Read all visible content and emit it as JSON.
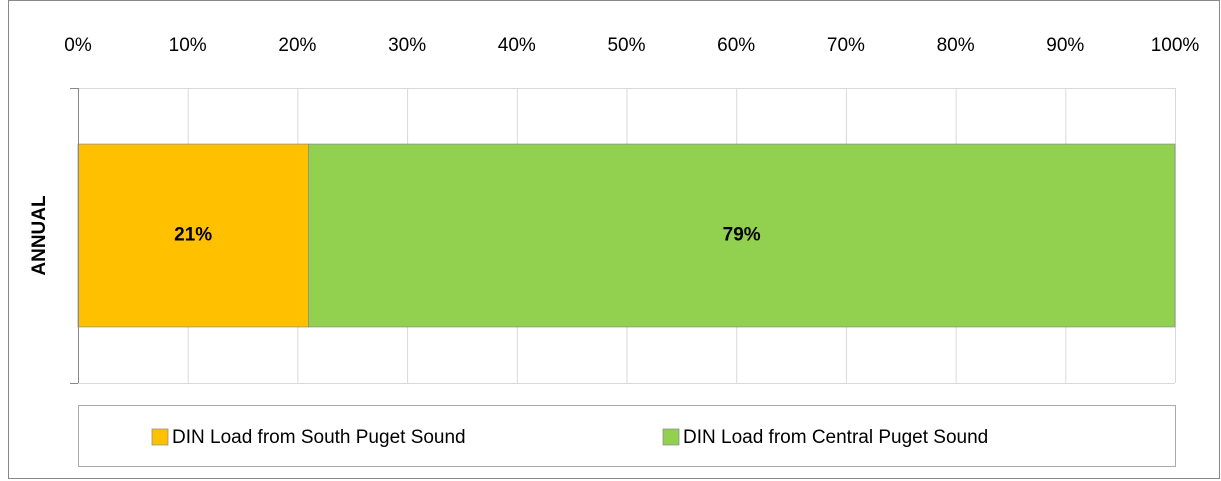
{
  "chart_data": {
    "type": "stacked_bar_horizontal",
    "categories": [
      "ANNUAL"
    ],
    "series": [
      {
        "name": "DIN Load from South Puget Sound",
        "color": "#FFC000",
        "values": [
          21
        ],
        "value_labels": [
          "21%"
        ]
      },
      {
        "name": "DIN Load from Central Puget Sound",
        "color": "#92D050",
        "values": [
          79
        ],
        "value_labels": [
          "79%"
        ]
      }
    ],
    "xlim": [
      0,
      100
    ],
    "xticks": [
      {
        "value": 0,
        "label": "0%"
      },
      {
        "value": 10,
        "label": "10%"
      },
      {
        "value": 20,
        "label": "20%"
      },
      {
        "value": 30,
        "label": "30%"
      },
      {
        "value": 40,
        "label": "40%"
      },
      {
        "value": 50,
        "label": "50%"
      },
      {
        "value": 60,
        "label": "60%"
      },
      {
        "value": 70,
        "label": "70%"
      },
      {
        "value": 80,
        "label": "80%"
      },
      {
        "value": 90,
        "label": "90%"
      },
      {
        "value": 100,
        "label": "100%"
      }
    ],
    "grid": true,
    "legend": "bottom"
  }
}
